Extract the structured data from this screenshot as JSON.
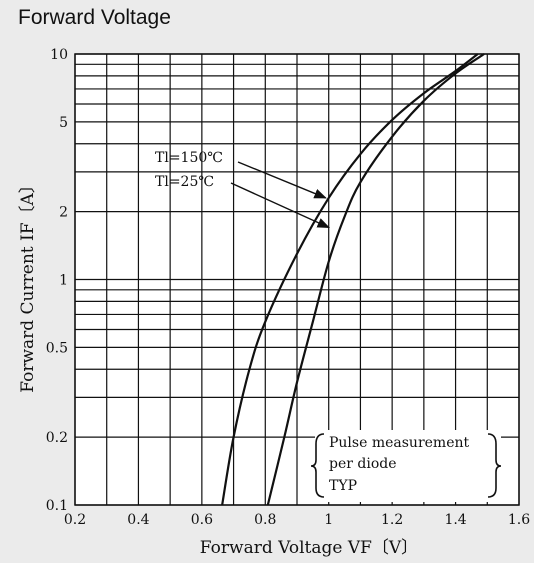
{
  "chart_data": {
    "type": "line",
    "title": "Forward Voltage",
    "xlabel": "Forward Voltage VF〔V〕",
    "ylabel": "Forward Current IF〔A〕",
    "xlim": [
      0.2,
      1.6
    ],
    "ylim": [
      0.1,
      10
    ],
    "y_scale": "log",
    "grid": true,
    "x_ticks": [
      "0.2",
      "0.4",
      "0.6",
      "0.8",
      "1",
      "1.2",
      "1.4",
      "1.6"
    ],
    "y_ticks": [
      {
        "value": 0.1,
        "label": "0.1"
      },
      {
        "value": 0.2,
        "label": "0.2"
      },
      {
        "value": 0.5,
        "label": "0.5"
      },
      {
        "value": 1,
        "label": "1"
      },
      {
        "value": 2,
        "label": "2"
      },
      {
        "value": 5,
        "label": "5"
      },
      {
        "value": 10,
        "label": "10"
      }
    ],
    "series": [
      {
        "name": "Tl=150℃",
        "points": [
          [
            0.664,
            0.1
          ],
          [
            0.7,
            0.2
          ],
          [
            0.75,
            0.4
          ],
          [
            0.8,
            0.65
          ],
          [
            0.9,
            1.3
          ],
          [
            1.0,
            2.3
          ],
          [
            1.1,
            3.6
          ],
          [
            1.2,
            5.1
          ],
          [
            1.3,
            6.7
          ],
          [
            1.4,
            8.4
          ],
          [
            1.47,
            10
          ]
        ]
      },
      {
        "name": "Tl=25℃",
        "points": [
          [
            0.808,
            0.1
          ],
          [
            0.86,
            0.2
          ],
          [
            0.9,
            0.35
          ],
          [
            0.95,
            0.65
          ],
          [
            1.0,
            1.2
          ],
          [
            1.05,
            1.9
          ],
          [
            1.1,
            2.7
          ],
          [
            1.2,
            4.3
          ],
          [
            1.3,
            6.2
          ],
          [
            1.4,
            8.2
          ],
          [
            1.49,
            10
          ]
        ]
      }
    ],
    "annotations": [
      {
        "text": "Tl=150℃",
        "target": [
          1.0,
          2.3
        ]
      },
      {
        "text": "Tl=25℃",
        "target": [
          1.01,
          1.7
        ]
      }
    ],
    "note": [
      "Pulse measurement",
      "per diode",
      "TYP"
    ]
  }
}
